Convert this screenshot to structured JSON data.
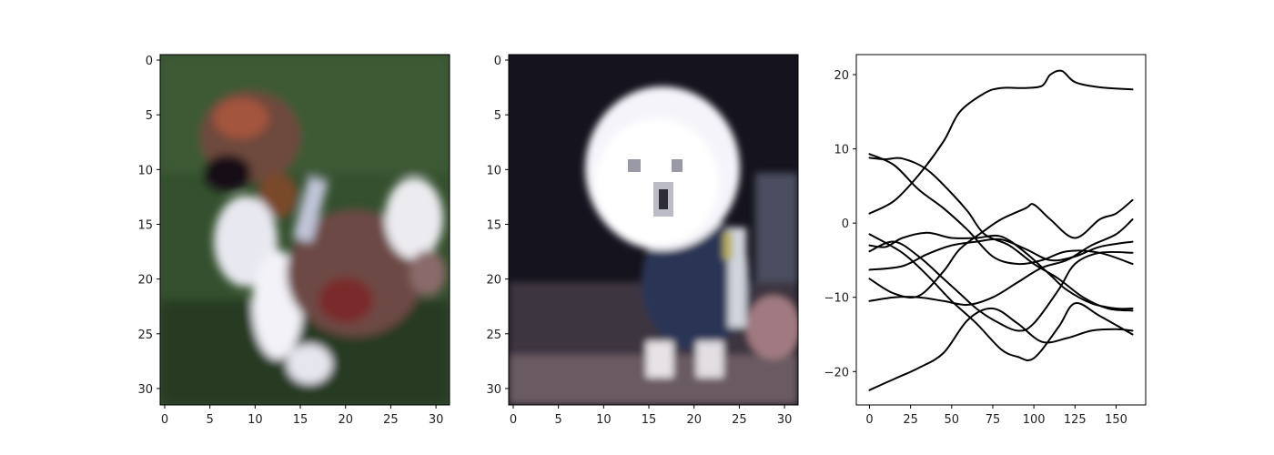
{
  "palette": {
    "grass": "#2f4a2a",
    "grass_dark": "#213520",
    "fur_brown": "#6e4a42",
    "fur_red": "#a0503a",
    "fur_white": "#eef0f6",
    "dark_bg": "#14121c",
    "suit_navy": "#2a3558",
    "pink": "#9a7a80",
    "line": "#000000"
  },
  "chart_data": [
    {
      "type": "image",
      "subject": "puppy on grass",
      "xticks": [
        "0",
        "5",
        "10",
        "15",
        "20",
        "25",
        "30"
      ],
      "yticks": [
        "0",
        "5",
        "10",
        "15",
        "20",
        "25",
        "30"
      ],
      "xlim": [
        -0.5,
        31.5
      ],
      "ylim": [
        31.5,
        -0.5
      ]
    },
    {
      "type": "image",
      "subject": "white dog wearing dark outfit",
      "xticks": [
        "0",
        "5",
        "10",
        "15",
        "20",
        "25",
        "30"
      ],
      "yticks": [
        "0",
        "5",
        "10",
        "15",
        "20",
        "25",
        "30"
      ],
      "xlim": [
        -0.5,
        31.5
      ],
      "ylim": [
        31.5,
        -0.5
      ]
    },
    {
      "type": "line",
      "xlim": [
        -8,
        168
      ],
      "ylim": [
        -24.5,
        22.7
      ],
      "xticks": [
        "0",
        "25",
        "50",
        "75",
        "100",
        "125",
        "150"
      ],
      "yticks": [
        "20",
        "10",
        "0",
        "−10",
        "−20"
      ],
      "xtick_values": [
        0,
        25,
        50,
        75,
        100,
        125,
        150
      ],
      "ytick_values": [
        20,
        10,
        0,
        -10,
        -20
      ],
      "x_max": 160,
      "series": [
        {
          "points": [
            [
              0,
              1.3
            ],
            [
              15,
              3
            ],
            [
              30,
              6.5
            ],
            [
              45,
              11
            ],
            [
              55,
              15
            ],
            [
              70,
              17.5
            ],
            [
              80,
              18.2
            ],
            [
              95,
              18.2
            ],
            [
              105,
              18.5
            ],
            [
              110,
              20
            ],
            [
              117,
              20.5
            ],
            [
              125,
              19
            ],
            [
              140,
              18.3
            ],
            [
              160,
              18
            ]
          ]
        },
        {
          "points": [
            [
              0,
              9.3
            ],
            [
              15,
              7.8
            ],
            [
              30,
              4.5
            ],
            [
              45,
              2
            ],
            [
              60,
              -1
            ],
            [
              75,
              -4.5
            ],
            [
              90,
              -5.5
            ],
            [
              105,
              -5
            ],
            [
              120,
              -3.8
            ],
            [
              140,
              -4
            ],
            [
              160,
              -5.5
            ]
          ]
        },
        {
          "points": [
            [
              0,
              8.8
            ],
            [
              10,
              8.6
            ],
            [
              20,
              8.7
            ],
            [
              35,
              7.2
            ],
            [
              50,
              4
            ],
            [
              60,
              1.5
            ],
            [
              70,
              -1.5
            ],
            [
              85,
              -3
            ],
            [
              100,
              -5.5
            ],
            [
              115,
              -7.5
            ],
            [
              130,
              -10
            ],
            [
              145,
              -11.5
            ],
            [
              160,
              -11.8
            ]
          ]
        },
        {
          "points": [
            [
              0,
              -3.8
            ],
            [
              15,
              -2.5
            ],
            [
              30,
              -4.5
            ],
            [
              45,
              -7.5
            ],
            [
              55,
              -9.5
            ],
            [
              65,
              -11.5
            ],
            [
              75,
              -13
            ],
            [
              90,
              -14.5
            ],
            [
              100,
              -13.5
            ],
            [
              115,
              -9
            ],
            [
              125,
              -5.5
            ],
            [
              140,
              -4
            ],
            [
              160,
              -4
            ]
          ]
        },
        {
          "points": [
            [
              0,
              -1.5
            ],
            [
              20,
              -4
            ],
            [
              35,
              -7
            ],
            [
              50,
              -10.5
            ],
            [
              65,
              -13.5
            ],
            [
              80,
              -17
            ],
            [
              90,
              -18
            ],
            [
              100,
              -18.2
            ],
            [
              115,
              -14
            ],
            [
              125,
              -10.8
            ],
            [
              140,
              -12.5
            ],
            [
              160,
              -15
            ]
          ]
        },
        {
          "points": [
            [
              0,
              -3
            ],
            [
              10,
              -3.2
            ],
            [
              20,
              -2
            ],
            [
              35,
              -1.3
            ],
            [
              50,
              -2
            ],
            [
              65,
              -2
            ],
            [
              80,
              -1.8
            ],
            [
              95,
              -4
            ],
            [
              110,
              -7
            ],
            [
              120,
              -9
            ],
            [
              135,
              -10.8
            ],
            [
              150,
              -11.5
            ],
            [
              160,
              -11.5
            ]
          ]
        },
        {
          "points": [
            [
              0,
              -6.3
            ],
            [
              20,
              -5.8
            ],
            [
              35,
              -4.2
            ],
            [
              50,
              -3
            ],
            [
              65,
              -2.5
            ],
            [
              80,
              -2.2
            ],
            [
              95,
              -3.5
            ],
            [
              110,
              -5
            ],
            [
              125,
              -4.5
            ],
            [
              140,
              -3.2
            ],
            [
              160,
              -2.5
            ]
          ]
        },
        {
          "points": [
            [
              0,
              -7.5
            ],
            [
              15,
              -9.5
            ],
            [
              30,
              -9.8
            ],
            [
              45,
              -6.5
            ],
            [
              55,
              -3.5
            ],
            [
              70,
              -1
            ],
            [
              80,
              0.5
            ],
            [
              95,
              2
            ],
            [
              100,
              2.5
            ],
            [
              110,
              0.5
            ],
            [
              125,
              -2
            ],
            [
              140,
              0.5
            ],
            [
              150,
              1.3
            ],
            [
              160,
              3.1
            ]
          ]
        },
        {
          "points": [
            [
              0,
              -10.5
            ],
            [
              15,
              -10
            ],
            [
              30,
              -10
            ],
            [
              45,
              -10.5
            ],
            [
              60,
              -11
            ],
            [
              75,
              -10
            ],
            [
              90,
              -8
            ],
            [
              105,
              -6
            ],
            [
              120,
              -5
            ],
            [
              135,
              -3
            ],
            [
              150,
              -1.5
            ],
            [
              160,
              0.5
            ]
          ]
        },
        {
          "points": [
            [
              0,
              -22.5
            ],
            [
              15,
              -21
            ],
            [
              30,
              -19.5
            ],
            [
              45,
              -17.5
            ],
            [
              60,
              -13
            ],
            [
              75,
              -11.5
            ],
            [
              90,
              -13.5
            ],
            [
              105,
              -16
            ],
            [
              120,
              -15.5
            ],
            [
              135,
              -14.5
            ],
            [
              150,
              -14.3
            ],
            [
              160,
              -14.5
            ]
          ]
        }
      ]
    }
  ]
}
